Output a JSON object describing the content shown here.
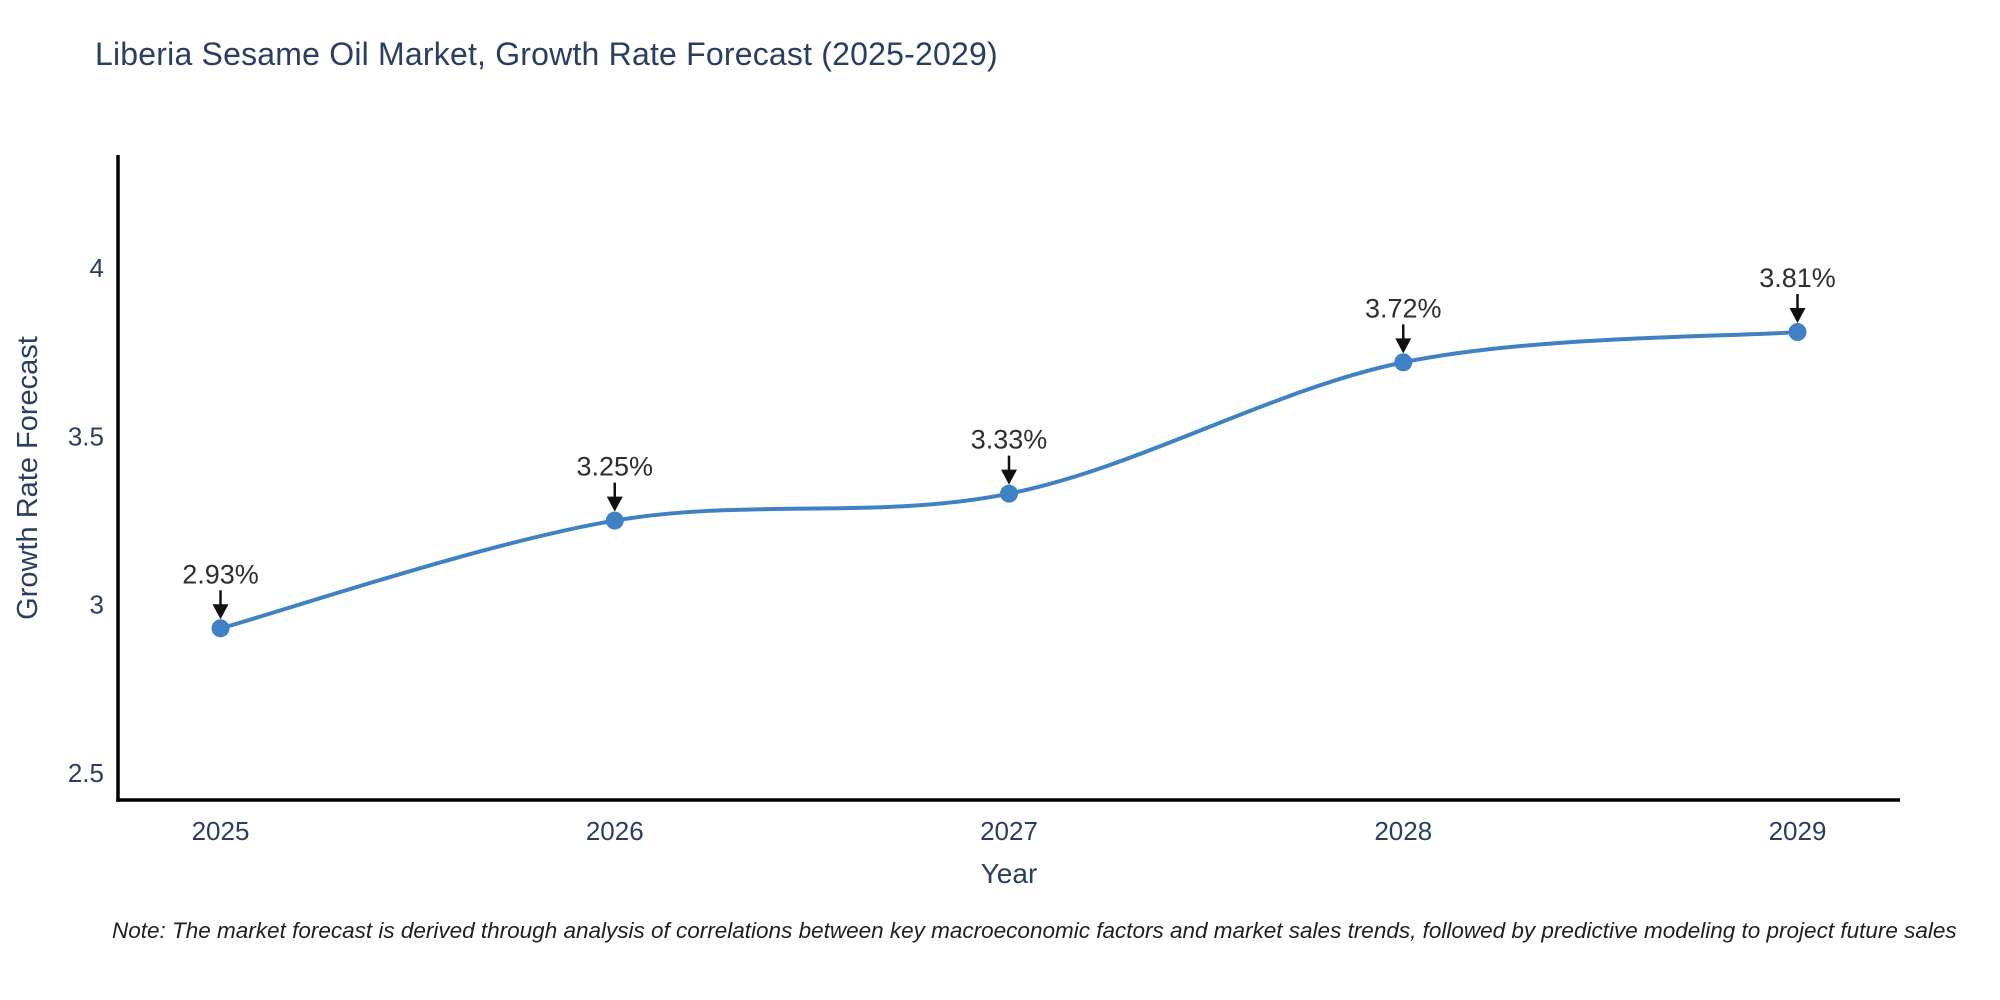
{
  "page": {
    "background": "#ffffff"
  },
  "chart_data": {
    "type": "line",
    "title": "Liberia Sesame Oil Market, Growth Rate Forecast (2025-2029)",
    "xlabel": "Year",
    "ylabel": "Growth Rate Forecast",
    "x": [
      2025,
      2026,
      2027,
      2028,
      2029
    ],
    "series": [
      {
        "name": "Growth Rate Forecast",
        "values": [
          2.93,
          3.25,
          3.33,
          3.72,
          3.81
        ]
      }
    ],
    "point_labels": [
      "2.93%",
      "3.25%",
      "3.33%",
      "3.72%",
      "3.81%"
    ],
    "xtick_labels": [
      "2025",
      "2026",
      "2027",
      "2028",
      "2029"
    ],
    "ytick_values": [
      2.5,
      3,
      3.5,
      4
    ],
    "ytick_labels": [
      "2.5",
      "3",
      "3.5",
      "4"
    ],
    "xlim": [
      2024.74,
      2029.26
    ],
    "ylim": [
      2.42,
      4.33
    ],
    "grid": false,
    "legend": "none",
    "line_shape": "spline",
    "colors": {
      "line": "#3e81c4",
      "marker": "#3e81c4",
      "axis": "#000000",
      "text": "#2a3f5f",
      "annotation_text": "#2e2e2e",
      "arrow": "#111111"
    },
    "note": "Note: The market forecast is derived through analysis of correlations between key macroeconomic factors and market sales trends, followed by predictive modeling to project future sales"
  }
}
